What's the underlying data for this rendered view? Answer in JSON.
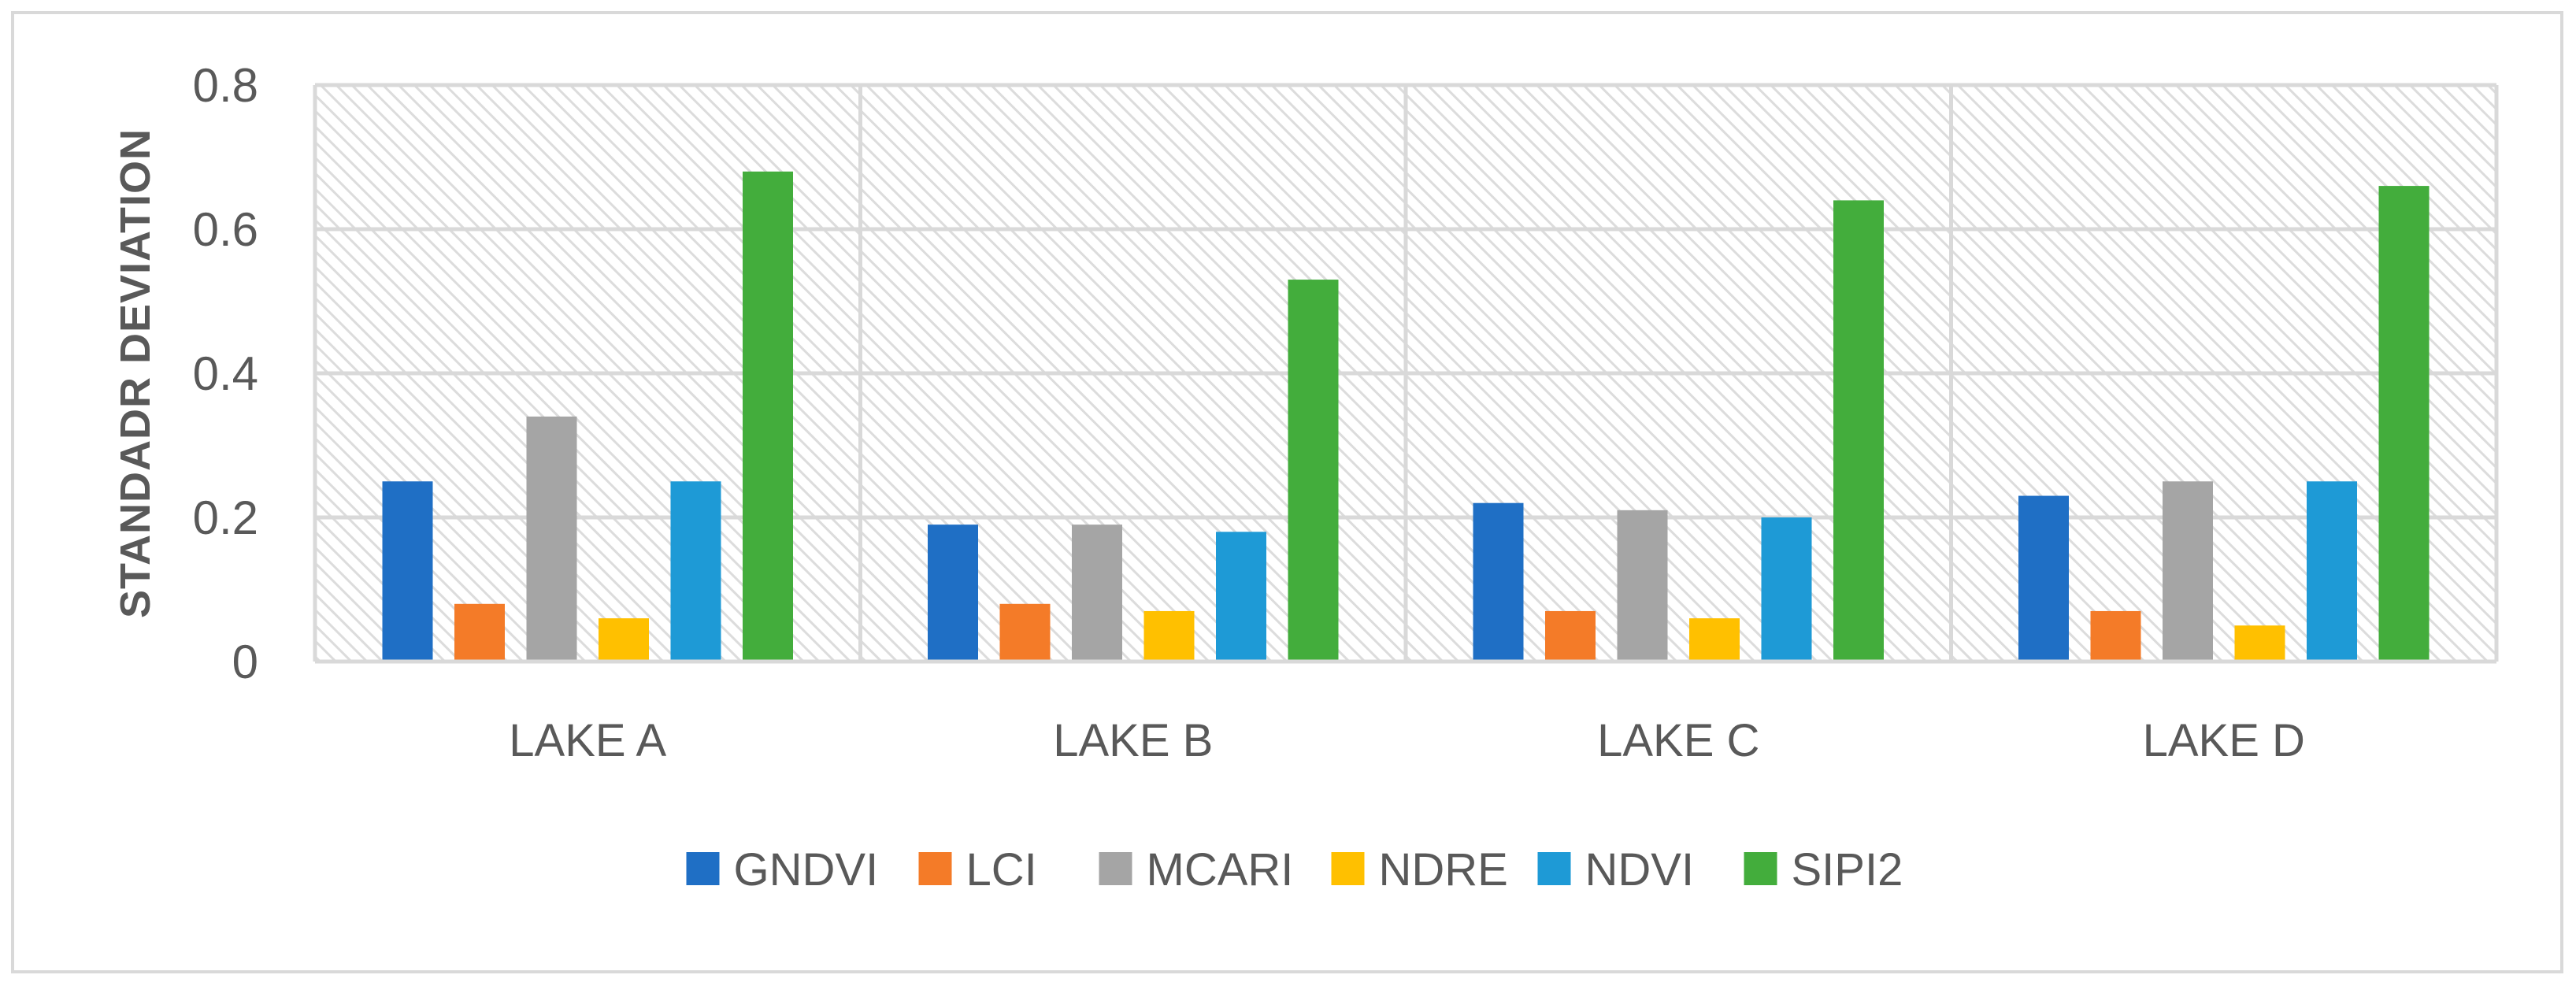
{
  "chart_data": {
    "type": "bar",
    "title": "",
    "xlabel": "",
    "ylabel": "STANDADR DEVIATION",
    "ylim": [
      0,
      0.8
    ],
    "yticks": [
      {
        "value": 0,
        "label": "0"
      },
      {
        "value": 0.2,
        "label": "0.2"
      },
      {
        "value": 0.4,
        "label": "0.4"
      },
      {
        "value": 0.6,
        "label": "0.6"
      },
      {
        "value": 0.8,
        "label": "0.8"
      }
    ],
    "grid": true,
    "legend_position": "bottom",
    "categories": [
      "LAKE A",
      "LAKE B",
      "LAKE C",
      "LAKE D"
    ],
    "series": [
      {
        "name": "GNDVI",
        "color": "#1f6fc5",
        "values": [
          0.25,
          0.19,
          0.22,
          0.23
        ]
      },
      {
        "name": "LCI",
        "color": "#f47b28",
        "values": [
          0.08,
          0.08,
          0.07,
          0.07
        ]
      },
      {
        "name": "MCARI",
        "color": "#a5a5a5",
        "values": [
          0.34,
          0.19,
          0.21,
          0.25
        ]
      },
      {
        "name": "NDRE",
        "color": "#ffc000",
        "values": [
          0.06,
          0.07,
          0.06,
          0.05
        ]
      },
      {
        "name": "NDVI",
        "color": "#1e9ad6",
        "values": [
          0.25,
          0.18,
          0.2,
          0.25
        ]
      },
      {
        "name": "SIPI2",
        "color": "#43ad3c",
        "values": [
          0.68,
          0.53,
          0.64,
          0.66
        ]
      }
    ]
  }
}
